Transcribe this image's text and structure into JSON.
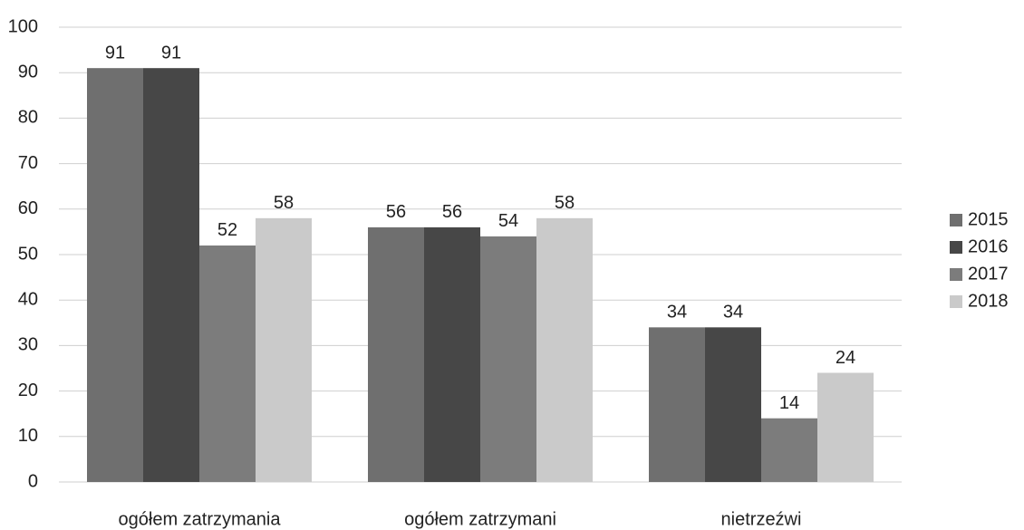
{
  "chart_data": {
    "type": "bar",
    "categories": [
      "ogółem zatrzymania",
      "ogółem zatrzymani",
      "nietrzeźwi"
    ],
    "series": [
      {
        "name": "2015",
        "color": "#6f6f6f",
        "values": [
          91,
          56,
          34
        ]
      },
      {
        "name": "2016",
        "color": "#474747",
        "values": [
          91,
          56,
          34
        ]
      },
      {
        "name": "2017",
        "color": "#7c7c7c",
        "values": [
          52,
          54,
          14
        ]
      },
      {
        "name": "2018",
        "color": "#cacaca",
        "values": [
          58,
          58,
          24
        ]
      }
    ],
    "ylim": [
      0,
      100
    ],
    "yticks": [
      0,
      10,
      20,
      30,
      40,
      50,
      60,
      70,
      80,
      90,
      100
    ],
    "grid": true,
    "legend": "right"
  }
}
